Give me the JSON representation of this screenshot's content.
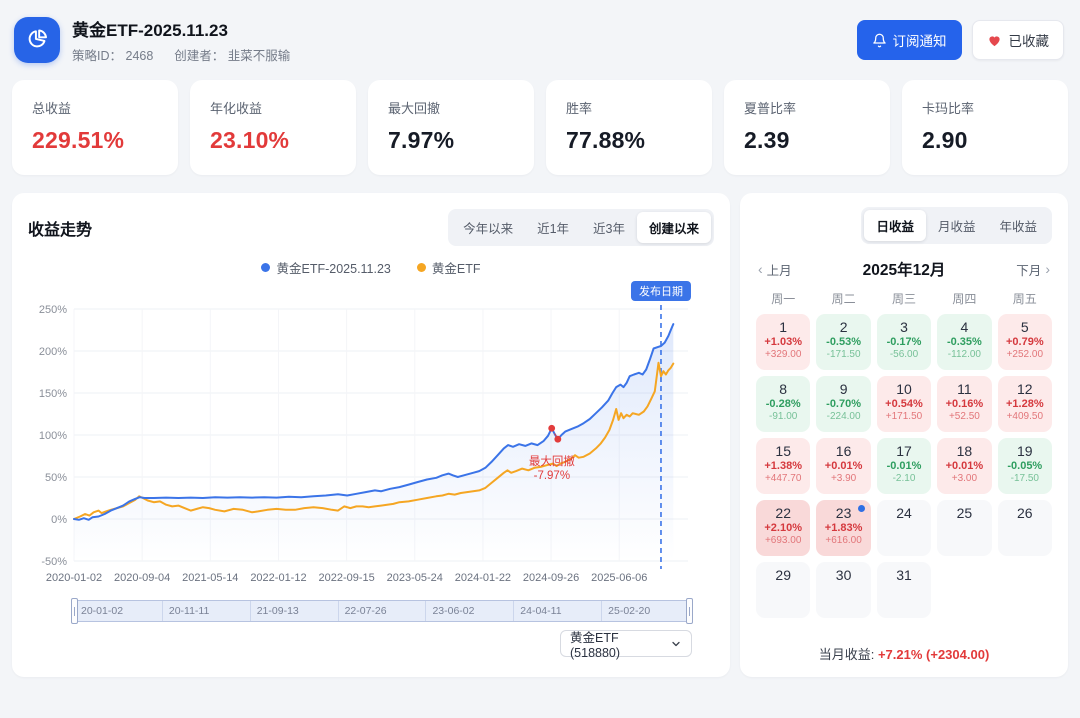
{
  "header": {
    "title": "黄金ETF-2025.11.23",
    "strategy_id_label": "策略ID：",
    "strategy_id": "2468",
    "creator_label": "创建者：",
    "creator": "韭菜不服输",
    "subscribe_label": "订阅通知",
    "favorite_label": "已收藏"
  },
  "stats": [
    {
      "label": "总收益",
      "value": "229.51%",
      "tone": "red"
    },
    {
      "label": "年化收益",
      "value": "23.10%",
      "tone": "red"
    },
    {
      "label": "最大回撤",
      "value": "7.97%",
      "tone": "dark"
    },
    {
      "label": "胜率",
      "value": "77.88%",
      "tone": "dark"
    },
    {
      "label": "夏普比率",
      "value": "2.39",
      "tone": "dark"
    },
    {
      "label": "卡玛比率",
      "value": "2.90",
      "tone": "dark"
    }
  ],
  "chart_panel": {
    "title": "收益走势",
    "range_tabs": [
      {
        "label": "今年以来",
        "active": false
      },
      {
        "label": "近1年",
        "active": false
      },
      {
        "label": "近3年",
        "active": false
      },
      {
        "label": "创建以来",
        "active": true
      }
    ],
    "slider_labels": [
      "20-01-02",
      "20-11-11",
      "21-09-13",
      "22-07-26",
      "23-06-02",
      "24-04-11",
      "25-02-20"
    ],
    "etf_select_value": "黄金ETF (518880)"
  },
  "chart_data": {
    "type": "line",
    "title": "收益走势",
    "ylim": [
      -50,
      250
    ],
    "yticks": [
      "250%",
      "200%",
      "150%",
      "100%",
      "50%",
      "0%",
      "-50%"
    ],
    "ytick_values": [
      250,
      200,
      150,
      100,
      50,
      0,
      -50
    ],
    "grid": true,
    "legend_position": "top-center",
    "x_ticks": [
      {
        "label": "2020-01-02",
        "t": 0.0
      },
      {
        "label": "2020-09-04",
        "t": 0.111
      },
      {
        "label": "2021-05-14",
        "t": 0.222
      },
      {
        "label": "2022-01-12",
        "t": 0.333
      },
      {
        "label": "2022-09-15",
        "t": 0.444
      },
      {
        "label": "2023-05-24",
        "t": 0.555
      },
      {
        "label": "2024-01-22",
        "t": 0.666
      },
      {
        "label": "2024-09-26",
        "t": 0.777
      },
      {
        "label": "2025-06-06",
        "t": 0.888
      }
    ],
    "series": [
      {
        "name": "黄金ETF-2025.11.23",
        "color": "#3b74e8",
        "area": true,
        "points": [
          [
            0,
            0
          ],
          [
            0.008,
            -1
          ],
          [
            0.016,
            1
          ],
          [
            0.024,
            -1
          ],
          [
            0.03,
            2
          ],
          [
            0.04,
            3
          ],
          [
            0.05,
            6
          ],
          [
            0.06,
            10
          ],
          [
            0.07,
            13
          ],
          [
            0.08,
            16
          ],
          [
            0.09,
            21
          ],
          [
            0.1,
            24
          ],
          [
            0.107,
            26
          ],
          [
            0.115,
            25
          ],
          [
            0.13,
            25
          ],
          [
            0.15,
            25.5
          ],
          [
            0.17,
            25
          ],
          [
            0.19,
            25.5
          ],
          [
            0.21,
            25
          ],
          [
            0.23,
            26
          ],
          [
            0.25,
            25.5
          ],
          [
            0.27,
            26
          ],
          [
            0.29,
            25.5
          ],
          [
            0.31,
            26
          ],
          [
            0.33,
            25.5
          ],
          [
            0.35,
            26.5
          ],
          [
            0.37,
            26
          ],
          [
            0.39,
            27
          ],
          [
            0.41,
            28
          ],
          [
            0.43,
            29.5
          ],
          [
            0.445,
            28
          ],
          [
            0.46,
            30
          ],
          [
            0.475,
            32
          ],
          [
            0.49,
            34
          ],
          [
            0.5,
            33
          ],
          [
            0.515,
            36
          ],
          [
            0.53,
            38
          ],
          [
            0.545,
            41
          ],
          [
            0.56,
            44
          ],
          [
            0.575,
            47
          ],
          [
            0.59,
            49
          ],
          [
            0.6,
            52
          ],
          [
            0.61,
            54
          ],
          [
            0.617,
            52
          ],
          [
            0.625,
            50
          ],
          [
            0.635,
            52
          ],
          [
            0.65,
            55
          ],
          [
            0.66,
            57
          ],
          [
            0.67,
            61
          ],
          [
            0.68,
            68
          ],
          [
            0.69,
            76
          ],
          [
            0.7,
            84
          ],
          [
            0.707,
            88
          ],
          [
            0.715,
            86
          ],
          [
            0.725,
            89
          ],
          [
            0.735,
            87
          ],
          [
            0.745,
            90
          ],
          [
            0.755,
            88
          ],
          [
            0.765,
            93
          ],
          [
            0.772,
            99
          ],
          [
            0.778,
            108
          ],
          [
            0.783,
            101
          ],
          [
            0.788,
            95
          ],
          [
            0.794,
            100
          ],
          [
            0.8,
            104
          ],
          [
            0.81,
            107
          ],
          [
            0.82,
            110
          ],
          [
            0.83,
            114
          ],
          [
            0.84,
            119
          ],
          [
            0.85,
            126
          ],
          [
            0.86,
            133
          ],
          [
            0.87,
            141
          ],
          [
            0.877,
            150
          ],
          [
            0.883,
            157
          ],
          [
            0.89,
            160
          ],
          [
            0.895,
            157
          ],
          [
            0.9,
            162
          ],
          [
            0.905,
            170
          ],
          [
            0.912,
            172
          ],
          [
            0.92,
            174
          ],
          [
            0.926,
            172
          ],
          [
            0.932,
            178
          ],
          [
            0.938,
            190
          ],
          [
            0.944,
            203
          ],
          [
            0.952,
            205
          ],
          [
            0.956,
            206
          ],
          [
            0.962,
            210
          ],
          [
            0.968,
            218
          ],
          [
            0.972,
            225
          ],
          [
            0.976,
            232
          ]
        ]
      },
      {
        "name": "黄金ETF",
        "color": "#f5a623",
        "area": false,
        "points": [
          [
            0,
            0
          ],
          [
            0.01,
            3
          ],
          [
            0.018,
            6
          ],
          [
            0.025,
            4
          ],
          [
            0.032,
            8
          ],
          [
            0.04,
            10
          ],
          [
            0.045,
            7
          ],
          [
            0.052,
            9
          ],
          [
            0.06,
            11
          ],
          [
            0.07,
            13
          ],
          [
            0.08,
            15
          ],
          [
            0.09,
            19
          ],
          [
            0.1,
            23
          ],
          [
            0.106,
            27
          ],
          [
            0.112,
            25
          ],
          [
            0.12,
            22
          ],
          [
            0.13,
            20
          ],
          [
            0.14,
            21
          ],
          [
            0.15,
            17
          ],
          [
            0.16,
            15
          ],
          [
            0.17,
            16
          ],
          [
            0.18,
            13
          ],
          [
            0.19,
            10
          ],
          [
            0.2,
            12
          ],
          [
            0.21,
            14
          ],
          [
            0.22,
            13
          ],
          [
            0.23,
            11
          ],
          [
            0.245,
            9
          ],
          [
            0.26,
            12
          ],
          [
            0.275,
            11
          ],
          [
            0.29,
            8
          ],
          [
            0.3,
            9
          ],
          [
            0.315,
            11
          ],
          [
            0.33,
            12
          ],
          [
            0.345,
            11
          ],
          [
            0.36,
            11
          ],
          [
            0.375,
            13
          ],
          [
            0.39,
            14
          ],
          [
            0.405,
            13
          ],
          [
            0.42,
            11
          ],
          [
            0.43,
            10
          ],
          [
            0.44,
            15
          ],
          [
            0.45,
            13
          ],
          [
            0.46,
            15
          ],
          [
            0.47,
            15
          ],
          [
            0.48,
            14
          ],
          [
            0.49,
            15
          ],
          [
            0.5,
            16
          ],
          [
            0.51,
            17
          ],
          [
            0.52,
            18
          ],
          [
            0.53,
            20
          ],
          [
            0.545,
            21
          ],
          [
            0.56,
            23
          ],
          [
            0.575,
            25
          ],
          [
            0.59,
            27
          ],
          [
            0.6,
            28
          ],
          [
            0.61,
            30
          ],
          [
            0.62,
            29
          ],
          [
            0.63,
            31
          ],
          [
            0.64,
            32
          ],
          [
            0.65,
            33
          ],
          [
            0.66,
            34
          ],
          [
            0.67,
            37
          ],
          [
            0.68,
            43
          ],
          [
            0.69,
            49
          ],
          [
            0.7,
            55
          ],
          [
            0.706,
            58
          ],
          [
            0.712,
            55
          ],
          [
            0.72,
            57
          ],
          [
            0.73,
            60
          ],
          [
            0.74,
            58
          ],
          [
            0.75,
            61
          ],
          [
            0.76,
            62
          ],
          [
            0.77,
            64
          ],
          [
            0.78,
            66
          ],
          [
            0.786,
            63
          ],
          [
            0.792,
            66
          ],
          [
            0.8,
            68
          ],
          [
            0.81,
            72
          ],
          [
            0.816,
            76
          ],
          [
            0.822,
            73
          ],
          [
            0.83,
            74
          ],
          [
            0.84,
            78
          ],
          [
            0.85,
            84
          ],
          [
            0.858,
            90
          ],
          [
            0.865,
            97
          ],
          [
            0.872,
            106
          ],
          [
            0.878,
            118
          ],
          [
            0.883,
            131
          ],
          [
            0.887,
            118
          ],
          [
            0.891,
            126
          ],
          [
            0.895,
            120
          ],
          [
            0.9,
            124
          ],
          [
            0.905,
            122
          ],
          [
            0.91,
            126
          ],
          [
            0.92,
            124
          ],
          [
            0.928,
            128
          ],
          [
            0.934,
            134
          ],
          [
            0.94,
            143
          ],
          [
            0.946,
            152
          ],
          [
            0.952,
            186
          ],
          [
            0.956,
            170
          ],
          [
            0.96,
            176
          ],
          [
            0.964,
            172
          ],
          [
            0.968,
            177
          ],
          [
            0.972,
            180
          ],
          [
            0.976,
            185
          ]
        ]
      }
    ],
    "annotations": {
      "max_drawdown": {
        "label": "最大回撤",
        "value": "-7.97%",
        "color": "#e23c3c",
        "peak_point": [
          0.778,
          108
        ],
        "trough_point": [
          0.788,
          95
        ]
      },
      "publish_line": {
        "label": "发布日期",
        "t": 0.956,
        "color": "#3b74e8"
      }
    }
  },
  "calendar": {
    "tabs": [
      {
        "label": "日收益",
        "active": true
      },
      {
        "label": "月收益",
        "active": false
      },
      {
        "label": "年收益",
        "active": false
      }
    ],
    "prev_label": "上月",
    "next_label": "下月",
    "month_title": "2025年12月",
    "weekdays": [
      "周一",
      "周二",
      "周三",
      "周四",
      "周五"
    ],
    "weeks": [
      [
        {
          "day": "1",
          "pct": "+1.03%",
          "amount": "+329.00",
          "tone": "up"
        },
        {
          "day": "2",
          "pct": "-0.53%",
          "amount": "-171.50",
          "tone": "down"
        },
        {
          "day": "3",
          "pct": "-0.17%",
          "amount": "-56.00",
          "tone": "down"
        },
        {
          "day": "4",
          "pct": "-0.35%",
          "amount": "-112.00",
          "tone": "down"
        },
        {
          "day": "5",
          "pct": "+0.79%",
          "amount": "+252.00",
          "tone": "up"
        }
      ],
      [
        {
          "day": "8",
          "pct": "-0.28%",
          "amount": "-91.00",
          "tone": "down"
        },
        {
          "day": "9",
          "pct": "-0.70%",
          "amount": "-224.00",
          "tone": "down"
        },
        {
          "day": "10",
          "pct": "+0.54%",
          "amount": "+171.50",
          "tone": "up"
        },
        {
          "day": "11",
          "pct": "+0.16%",
          "amount": "+52.50",
          "tone": "up"
        },
        {
          "day": "12",
          "pct": "+1.28%",
          "amount": "+409.50",
          "tone": "up"
        }
      ],
      [
        {
          "day": "15",
          "pct": "+1.38%",
          "amount": "+447.70",
          "tone": "up"
        },
        {
          "day": "16",
          "pct": "+0.01%",
          "amount": "+3.90",
          "tone": "up"
        },
        {
          "day": "17",
          "pct": "-0.01%",
          "amount": "-2.10",
          "tone": "down"
        },
        {
          "day": "18",
          "pct": "+0.01%",
          "amount": "+3.00",
          "tone": "up"
        },
        {
          "day": "19",
          "pct": "-0.05%",
          "amount": "-17.50",
          "tone": "down"
        }
      ],
      [
        {
          "day": "22",
          "pct": "+2.10%",
          "amount": "+693.00",
          "tone": "up2"
        },
        {
          "day": "23",
          "pct": "+1.83%",
          "amount": "+616.00",
          "tone": "up2",
          "marker": true
        },
        {
          "day": "24",
          "tone": "none"
        },
        {
          "day": "25",
          "tone": "none"
        },
        {
          "day": "26",
          "tone": "none"
        }
      ],
      [
        {
          "day": "29",
          "tone": "none"
        },
        {
          "day": "30",
          "tone": "none"
        },
        {
          "day": "31",
          "tone": "none"
        },
        null,
        null
      ]
    ],
    "footer_label": "当月收益:",
    "footer_value": "+7.21% (+2304.00)"
  },
  "colors": {
    "accent_blue": "#2563eb",
    "series_blue": "#3b74e8",
    "series_orange": "#f5a623",
    "up_red": "#e23a3a",
    "down_green": "#2f9e60"
  }
}
